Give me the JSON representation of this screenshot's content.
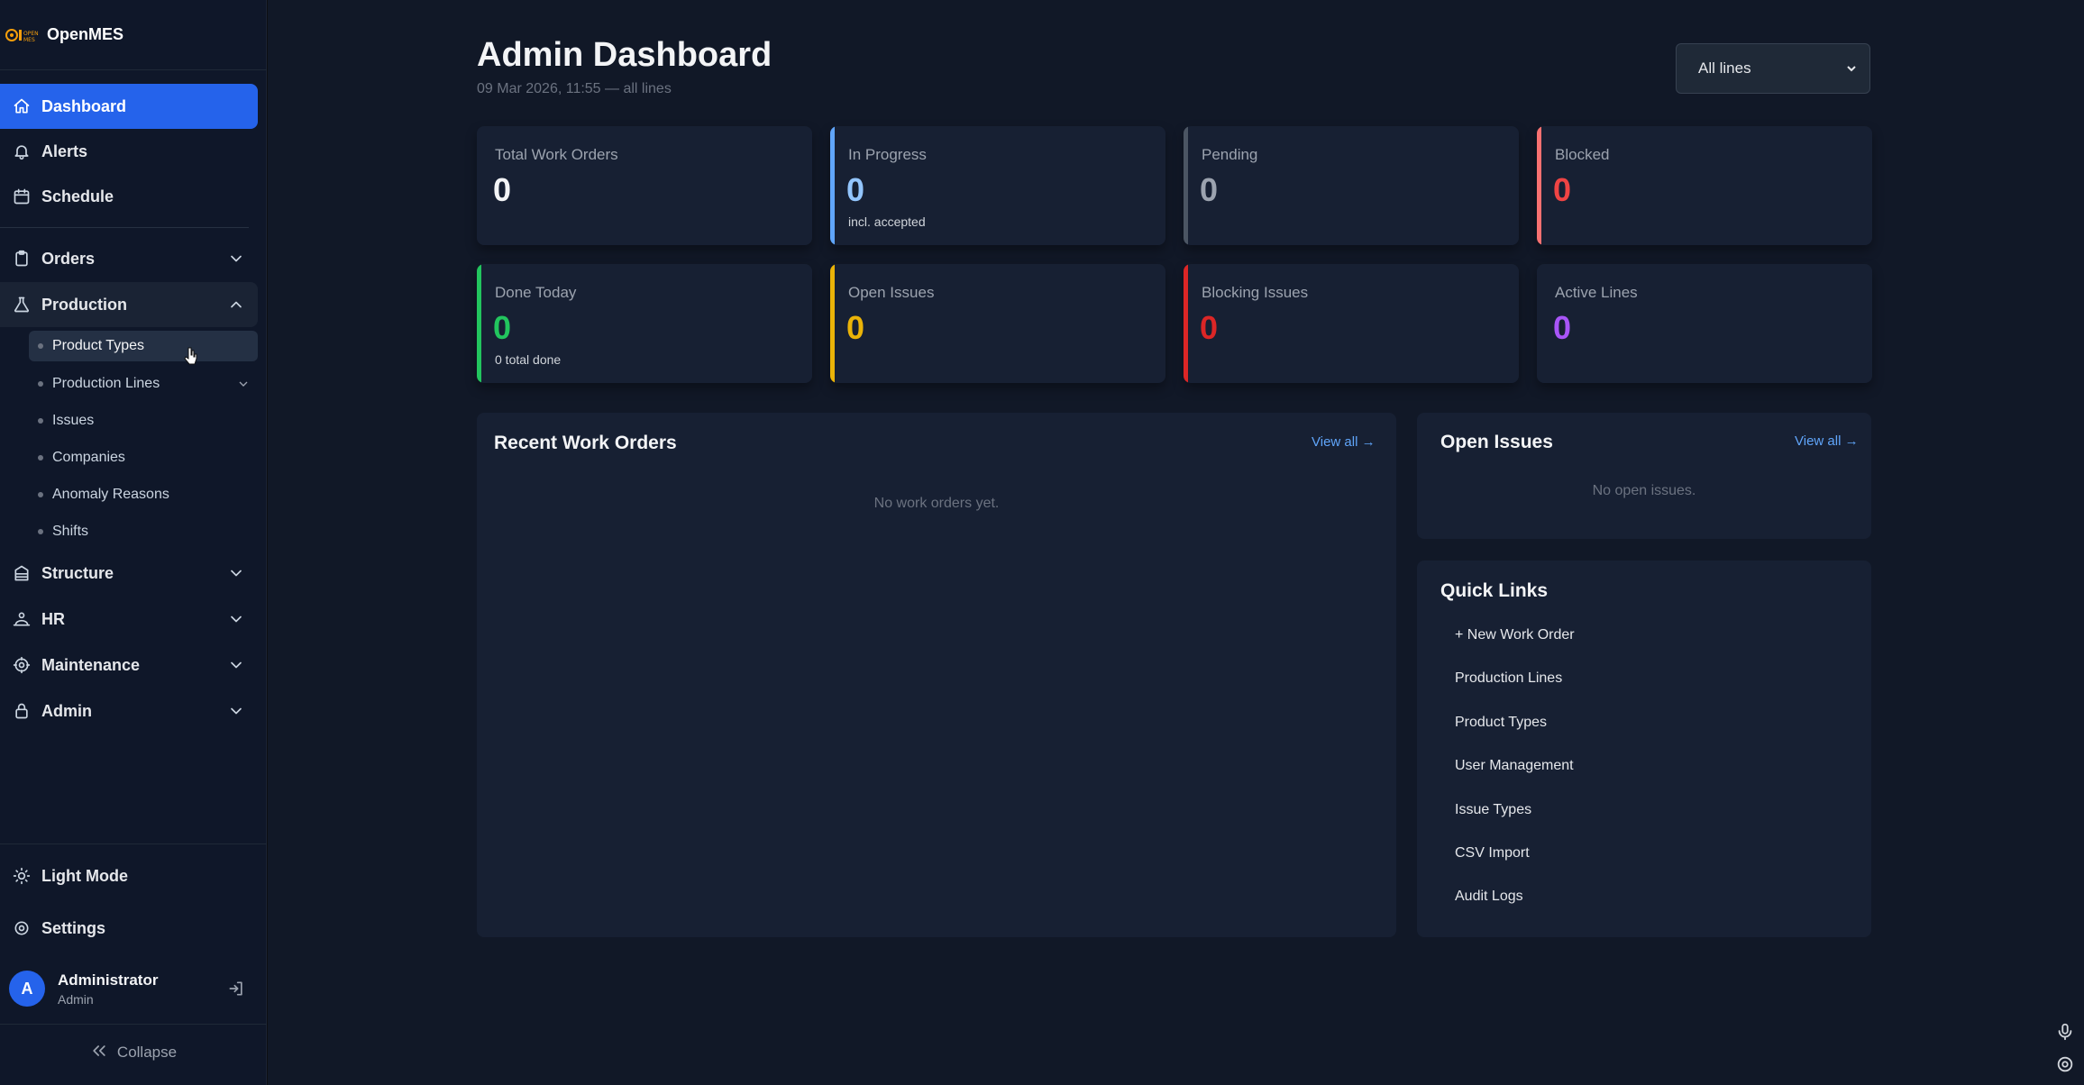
{
  "app": {
    "name": "OpenMES",
    "logo_text": "OPEN MES"
  },
  "sidebar": {
    "dashboard": "Dashboard",
    "alerts": "Alerts",
    "schedule": "Schedule",
    "orders": "Orders",
    "production": "Production",
    "production_items": [
      "Product Types",
      "Production Lines",
      "Issues",
      "Companies",
      "Anomaly Reasons",
      "Shifts"
    ],
    "structure": "Structure",
    "hr": "HR",
    "maintenance": "Maintenance",
    "admin": "Admin",
    "light_mode": "Light Mode",
    "settings": "Settings",
    "user": {
      "initial": "A",
      "name": "Administrator",
      "role": "Admin"
    },
    "collapse": "Collapse"
  },
  "header": {
    "title": "Admin Dashboard",
    "subtitle": "09 Mar 2026, 11:55 — all lines",
    "line_filter": "All lines"
  },
  "stats": {
    "total": {
      "label": "Total Work Orders",
      "value": "0"
    },
    "in_progress": {
      "label": "In Progress",
      "value": "0",
      "note": "incl. accepted"
    },
    "pending": {
      "label": "Pending",
      "value": "0"
    },
    "blocked": {
      "label": "Blocked",
      "value": "0"
    },
    "done_today": {
      "label": "Done Today",
      "value": "0",
      "note": "0 total done"
    },
    "open_issues": {
      "label": "Open Issues",
      "value": "0"
    },
    "blocking_issues": {
      "label": "Blocking Issues",
      "value": "0"
    },
    "active_lines": {
      "label": "Active Lines",
      "value": "0"
    }
  },
  "recent_orders": {
    "title": "Recent Work Orders",
    "view_all": "View all →",
    "empty": "No work orders yet."
  },
  "open_issues_panel": {
    "title": "Open Issues",
    "view_all": "View all →",
    "empty": "No open issues."
  },
  "quick_links": {
    "title": "Quick Links",
    "items": [
      "+ New Work Order",
      "Production Lines",
      "Product Types",
      "User Management",
      "Issue Types",
      "CSV Import",
      "Audit Logs"
    ]
  },
  "colors": {
    "accent_blue": "#2563eb",
    "in_progress": "#60a5fa",
    "pending": "#6b7280",
    "blocked": "#ef4444",
    "done": "#22c55e",
    "open_issues": "#eab308",
    "blocking": "#dc2626",
    "active_lines": "#a855f7"
  }
}
